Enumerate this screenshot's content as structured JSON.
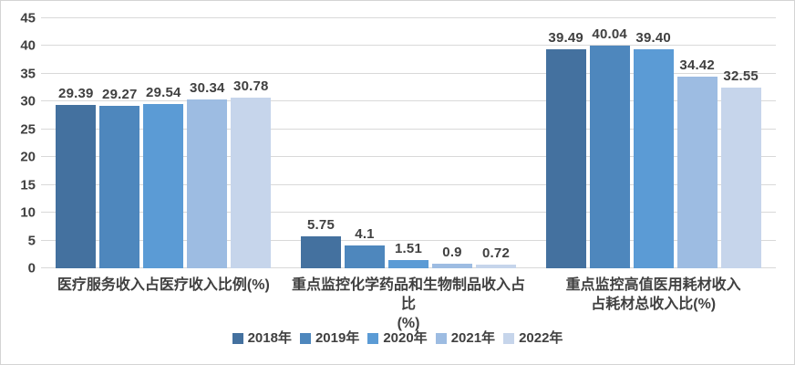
{
  "chart_data": {
    "type": "bar",
    "title": "",
    "xlabel": "",
    "ylabel": "",
    "ylim": [
      0,
      45
    ],
    "grid": true,
    "legend_position": "bottom",
    "y_axis": {
      "min": 0,
      "max": 45,
      "step": 5,
      "ticks": [
        "0",
        "5",
        "10",
        "15",
        "20",
        "25",
        "30",
        "35",
        "40",
        "45"
      ]
    },
    "categories": [
      {
        "lines": [
          "医疗服务收入占医疗收入比例(%)"
        ]
      },
      {
        "lines": [
          "重点监控化学药品和生物制品收入占比",
          "(%)"
        ]
      },
      {
        "lines": [
          "重点监控高值医用耗材收入",
          "占耗材总收入比(%)"
        ]
      }
    ],
    "series": [
      {
        "name": "2018年",
        "color": "#44719F",
        "values": [
          29.39,
          5.75,
          39.49
        ],
        "labels": [
          "29.39",
          "5.75",
          "39.49"
        ]
      },
      {
        "name": "2019年",
        "color": "#4E87BD",
        "values": [
          29.27,
          4.1,
          40.04
        ],
        "labels": [
          "29.27",
          "4.1",
          "40.04"
        ]
      },
      {
        "name": "2020年",
        "color": "#5B9BD5",
        "values": [
          29.54,
          1.51,
          39.4
        ],
        "labels": [
          "29.54",
          "1.51",
          "39.40"
        ]
      },
      {
        "name": "2021年",
        "color": "#9DBCE2",
        "values": [
          30.34,
          0.9,
          34.42
        ],
        "labels": [
          "30.34",
          "0.9",
          "34.42"
        ]
      },
      {
        "name": "2022年",
        "color": "#C6D5EB",
        "values": [
          30.78,
          0.72,
          32.55
        ],
        "labels": [
          "30.78",
          "0.72",
          "32.55"
        ]
      }
    ],
    "colors": {
      "gridline": "#D9D9D9",
      "axis_text": "#404040",
      "data_label_text": "#404040",
      "frame_border": "#D4D4D4",
      "background": "#FFFFFF"
    }
  }
}
